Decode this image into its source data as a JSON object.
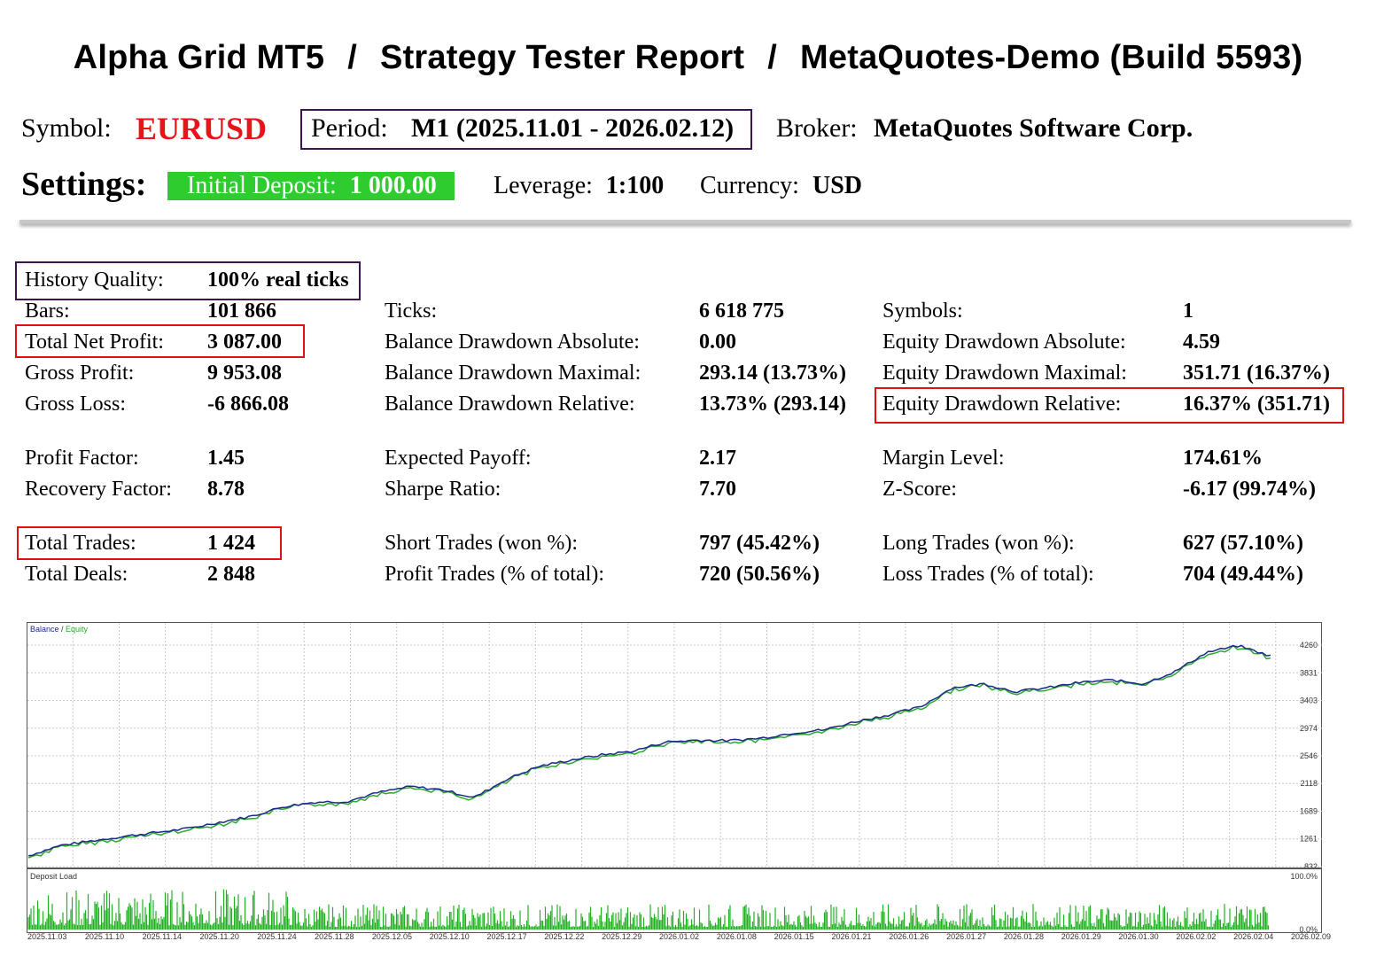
{
  "title": {
    "part1": "Alpha Grid MT5",
    "sep": "/",
    "part2": "Strategy Tester Report",
    "part3": "MetaQuotes-Demo (Build 5593)"
  },
  "header": {
    "symbol_label": "Symbol:",
    "symbol_value": "EURUSD",
    "period_label": "Period:",
    "period_value": "M1 (2025.11.01 - 2026.02.12)",
    "broker_label": "Broker:",
    "broker_value": "MetaQuotes Software Corp."
  },
  "settings": {
    "label": "Settings:",
    "deposit_label": "Initial Deposit:",
    "deposit_value": "1 000.00",
    "leverage_label": "Leverage:",
    "leverage_value": "1:100",
    "currency_label": "Currency:",
    "currency_value": "USD"
  },
  "stats": {
    "col1": [
      {
        "label": "History Quality:",
        "value": "100% real ticks"
      },
      {
        "label": "Bars:",
        "value": "101 866"
      },
      {
        "label": "Total Net Profit:",
        "value": "3 087.00"
      },
      {
        "label": "Gross Profit:",
        "value": "9 953.08"
      },
      {
        "label": "Gross Loss:",
        "value": "-6 866.08"
      },
      {
        "label": "Profit Factor:",
        "value": "1.45"
      },
      {
        "label": "Recovery Factor:",
        "value": "8.78"
      },
      {
        "label": "Total Trades:",
        "value": "1 424"
      },
      {
        "label": "Total Deals:",
        "value": "2 848"
      }
    ],
    "col2": [
      {
        "label": "Ticks:",
        "value": "6 618 775"
      },
      {
        "label": "Balance Drawdown Absolute:",
        "value": "0.00"
      },
      {
        "label": "Balance Drawdown Maximal:",
        "value": "293.14 (13.73%)"
      },
      {
        "label": "Balance Drawdown Relative:",
        "value": "13.73% (293.14)"
      },
      {
        "label": "Expected Payoff:",
        "value": "2.17"
      },
      {
        "label": "Sharpe Ratio:",
        "value": "7.70"
      },
      {
        "label": "Short Trades (won %):",
        "value": "797 (45.42%)"
      },
      {
        "label": "Profit Trades (% of total):",
        "value": "720 (50.56%)"
      }
    ],
    "col3": [
      {
        "label": "Symbols:",
        "value": "1"
      },
      {
        "label": "Equity Drawdown Absolute:",
        "value": "4.59"
      },
      {
        "label": "Equity Drawdown Maximal:",
        "value": "351.71 (16.37%)"
      },
      {
        "label": "Equity Drawdown Relative:",
        "value": "16.37% (351.71)"
      },
      {
        "label": "Margin Level:",
        "value": "174.61%"
      },
      {
        "label": "Z-Score:",
        "value": "-6.17 (99.74%)"
      },
      {
        "label": "Long Trades (won %):",
        "value": "627 (57.10%)"
      },
      {
        "label": "Loss Trades (% of total):",
        "value": "704 (49.44%)"
      }
    ]
  },
  "chart_data": {
    "type": "line",
    "legend_balance": "Balance",
    "legend_sep": " / ",
    "legend_equity": "Equity",
    "subchart_label": "Deposit Load",
    "y_ticks": [
      "4260",
      "3831",
      "3403",
      "2974",
      "2546",
      "2118",
      "1689",
      "1261",
      "832"
    ],
    "y_range": [
      832,
      4260
    ],
    "load_ticks": [
      "100.0%",
      "0.0%"
    ],
    "x_ticks": [
      "2025.11.03",
      "2025.11.10",
      "2025.11.14",
      "2025.11.20",
      "2025.11.24",
      "2025.11.28",
      "2025.12.05",
      "2025.12.10",
      "2025.12.17",
      "2025.12.22",
      "2025.12.29",
      "2026.01.02",
      "2026.01.08",
      "2026.01.15",
      "2026.01.21",
      "2026.01.26",
      "2026.01.27",
      "2026.01.28",
      "2026.01.29",
      "2026.01.30",
      "2026.02.02",
      "2026.02.04",
      "2026.02.09"
    ],
    "balance": [
      1000,
      1160,
      1230,
      1300,
      1360,
      1420,
      1520,
      1610,
      1760,
      1830,
      1840,
      1980,
      2070,
      2020,
      1900,
      2180,
      2380,
      2480,
      2560,
      2620,
      2760,
      2790,
      2780,
      2820,
      2900,
      2950,
      3080,
      3180,
      3300,
      3600,
      3660,
      3540,
      3600,
      3680,
      3720,
      3660,
      3850,
      4150,
      4250,
      4090
    ],
    "colors": {
      "balance": "#1a2a8a",
      "equity": "#2ca82c",
      "load": "#22b022",
      "grid": "#c8c8c8"
    }
  }
}
